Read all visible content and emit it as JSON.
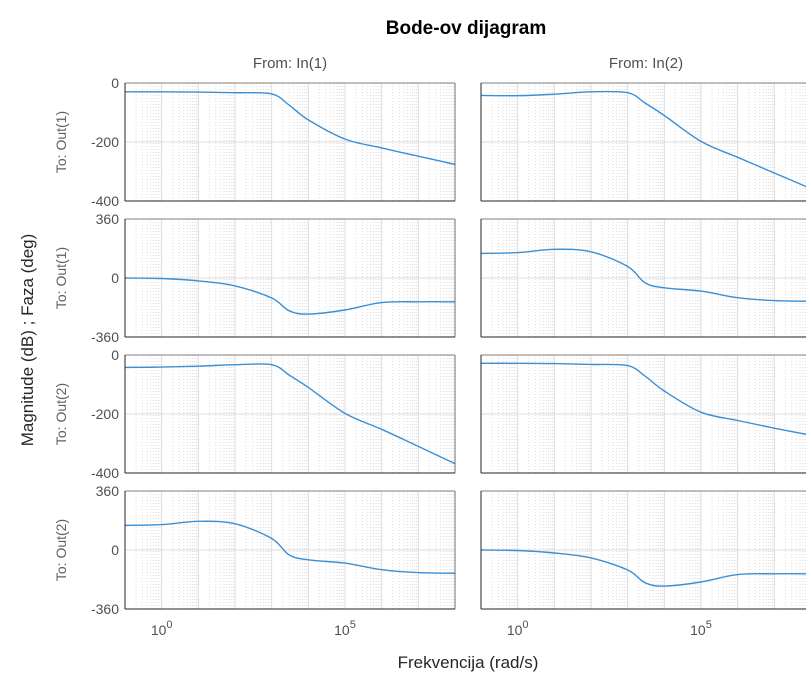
{
  "chart_data": {
    "type": "line",
    "title": "Bode-ov dijagram",
    "xlabel": "Frekvencija  (rad/s)",
    "ylabel": "Magnitude (dB) ; Faza (deg)",
    "x_scale": "log",
    "xlim": [
      0.1,
      100000000
    ],
    "x_tick_values": [
      1,
      100000
    ],
    "x_tick_labels": [
      "10",
      "10"
    ],
    "x_tick_exponents": [
      "0",
      "5"
    ],
    "grid": true,
    "line_color": "#3b8fd4",
    "columns": [
      "From: In(1)",
      "From: In(2)"
    ],
    "rows": [
      {
        "label": "To: Out(1)",
        "kind": "magnitude",
        "ylim": [
          -400,
          0
        ],
        "yticks": [
          0,
          -200,
          -400
        ]
      },
      {
        "label": "To: Out(1)",
        "kind": "phase",
        "ylim": [
          -360,
          360
        ],
        "yticks": [
          360,
          0,
          -360
        ]
      },
      {
        "label": "To: Out(2)",
        "kind": "magnitude",
        "ylim": [
          -400,
          0
        ],
        "yticks": [
          0,
          -200,
          -400
        ]
      },
      {
        "label": "To: Out(2)",
        "kind": "phase",
        "ylim": [
          -360,
          360
        ],
        "yticks": [
          360,
          0,
          -360
        ]
      }
    ],
    "panels": [
      {
        "row": 0,
        "col": 0,
        "x": [
          0.1,
          1,
          10,
          100,
          1000,
          3000,
          10000,
          100000,
          1000000,
          10000000,
          100000000
        ],
        "y": [
          -30,
          -30,
          -31,
          -33,
          -37,
          -75,
          -125,
          -190,
          -220,
          -248,
          -276
        ]
      },
      {
        "row": 0,
        "col": 1,
        "x": [
          0.1,
          1,
          10,
          100,
          1000,
          3000,
          10000,
          100000,
          1000000,
          10000000,
          100000000
        ],
        "y": [
          -42,
          -43,
          -38,
          -30,
          -33,
          -68,
          -110,
          -198,
          -252,
          -305,
          -358
        ]
      },
      {
        "row": 1,
        "col": 0,
        "x": [
          0.1,
          1,
          10,
          100,
          1000,
          3000,
          10000,
          100000,
          1000000,
          10000000,
          100000000
        ],
        "y": [
          0,
          -3,
          -18,
          -48,
          -122,
          -200,
          -220,
          -195,
          -150,
          -145,
          -145
        ]
      },
      {
        "row": 1,
        "col": 1,
        "x": [
          0.1,
          1,
          10,
          100,
          1000,
          3000,
          10000,
          100000,
          1000000,
          10000000,
          100000000
        ],
        "y": [
          150,
          155,
          175,
          160,
          70,
          -30,
          -60,
          -80,
          -120,
          -138,
          -142
        ]
      },
      {
        "row": 2,
        "col": 0,
        "x": [
          0.1,
          1,
          10,
          100,
          1000,
          3000,
          10000,
          100000,
          1000000,
          10000000,
          100000000
        ],
        "y": [
          -42,
          -41,
          -38,
          -33,
          -33,
          -68,
          -110,
          -198,
          -252,
          -310,
          -368
        ]
      },
      {
        "row": 2,
        "col": 1,
        "x": [
          0.1,
          1,
          10,
          100,
          1000,
          3000,
          10000,
          100000,
          1000000,
          10000000,
          100000000
        ],
        "y": [
          -28,
          -28,
          -29,
          -32,
          -36,
          -72,
          -122,
          -194,
          -222,
          -248,
          -272
        ]
      },
      {
        "row": 3,
        "col": 0,
        "x": [
          0.1,
          1,
          10,
          100,
          1000,
          3000,
          10000,
          100000,
          1000000,
          10000000,
          100000000
        ],
        "y": [
          150,
          155,
          175,
          160,
          70,
          -30,
          -60,
          -80,
          -120,
          -138,
          -142
        ]
      },
      {
        "row": 3,
        "col": 1,
        "x": [
          0.1,
          1,
          10,
          100,
          1000,
          3000,
          10000,
          100000,
          1000000,
          10000000,
          100000000
        ],
        "y": [
          0,
          -3,
          -18,
          -48,
          -122,
          -200,
          -220,
          -195,
          -150,
          -145,
          -145
        ]
      }
    ]
  }
}
